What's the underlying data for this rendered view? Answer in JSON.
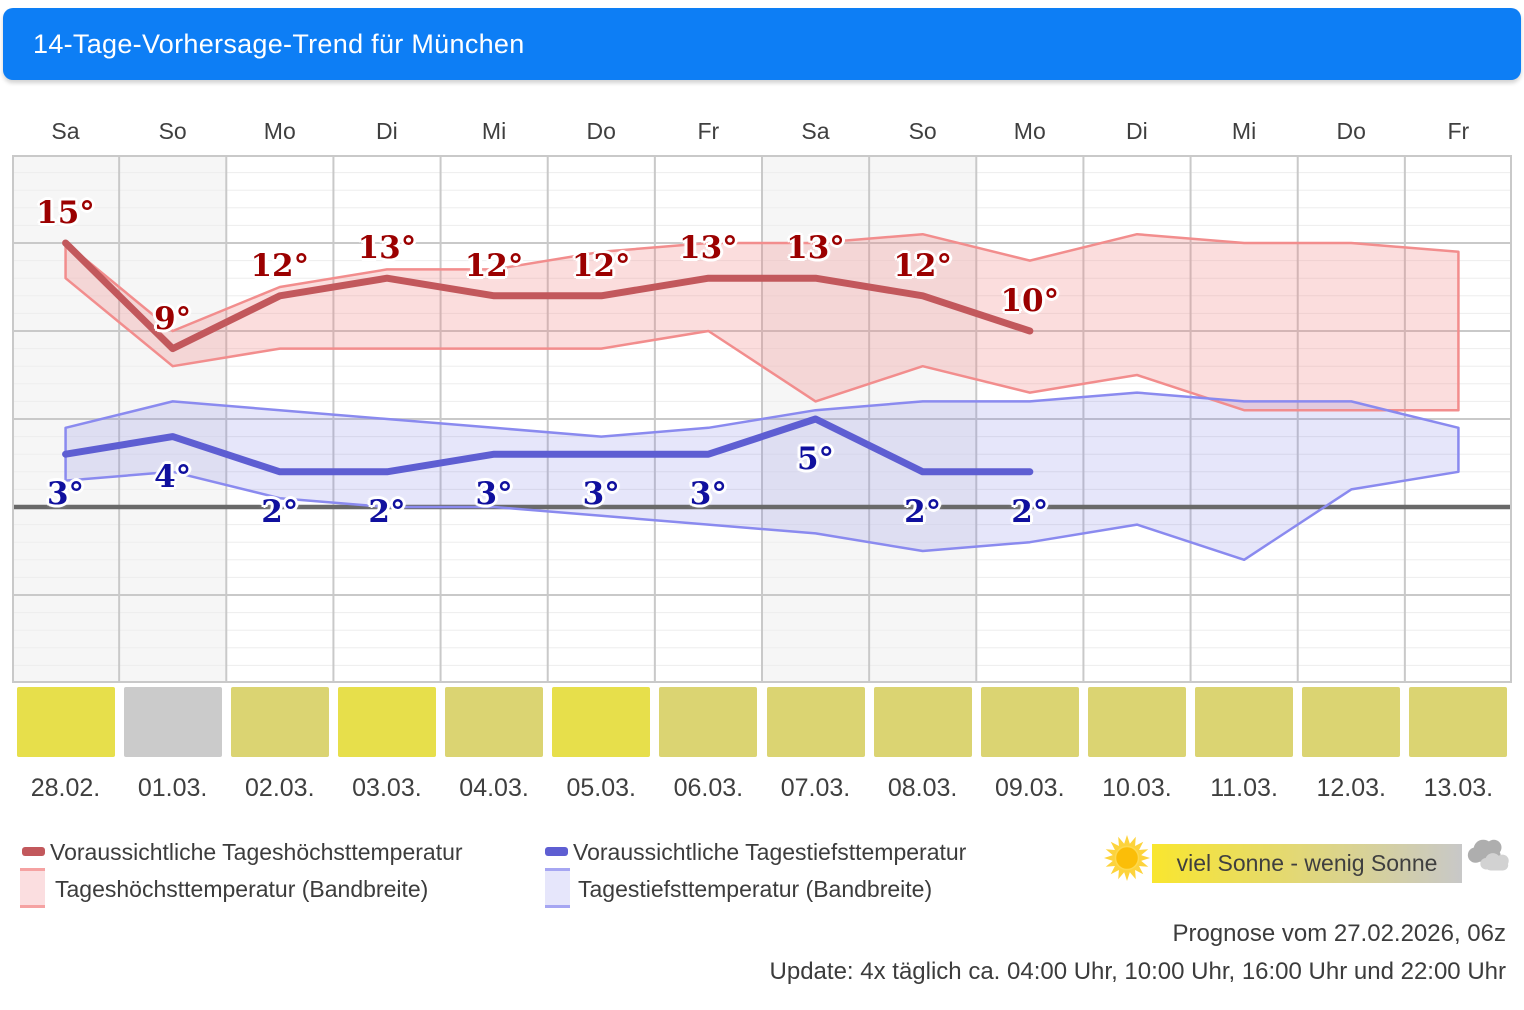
{
  "header": {
    "title": "14-Tage-Vorhersage-Trend für München",
    "bg_color": "#0d7ef5"
  },
  "days": [
    {
      "name": "Sa",
      "date": "28.02.",
      "sun_color": "#e7df4b"
    },
    {
      "name": "So",
      "date": "01.03.",
      "sun_color": "#cbcbcb"
    },
    {
      "name": "Mo",
      "date": "02.03.",
      "sun_color": "#dbd472"
    },
    {
      "name": "Di",
      "date": "03.03.",
      "sun_color": "#e7df4b"
    },
    {
      "name": "Mi",
      "date": "04.03.",
      "sun_color": "#dbd472"
    },
    {
      "name": "Do",
      "date": "05.03.",
      "sun_color": "#e7df4b"
    },
    {
      "name": "Fr",
      "date": "06.03.",
      "sun_color": "#dbd472"
    },
    {
      "name": "Sa",
      "date": "07.03.",
      "sun_color": "#dbd472"
    },
    {
      "name": "So",
      "date": "08.03.",
      "sun_color": "#dbd472"
    },
    {
      "name": "Mo",
      "date": "09.03.",
      "sun_color": "#dbd472"
    },
    {
      "name": "Di",
      "date": "10.03.",
      "sun_color": "#dbd472"
    },
    {
      "name": "Mi",
      "date": "11.03.",
      "sun_color": "#dbd472"
    },
    {
      "name": "Do",
      "date": "12.03.",
      "sun_color": "#dbd472"
    },
    {
      "name": "Fr",
      "date": "13.03.",
      "sun_color": "#dbd472"
    }
  ],
  "chart_data": {
    "type": "area",
    "title": "14-Tage-Vorhersage-Trend für München",
    "categories": [
      "Sa 28.02.",
      "So 01.03.",
      "Mo 02.03.",
      "Di 03.03.",
      "Mi 04.03.",
      "Do 05.03.",
      "Fr 06.03.",
      "Sa 07.03.",
      "So 08.03.",
      "Mo 09.03.",
      "Di 10.03.",
      "Mi 11.03.",
      "Do 12.03.",
      "Fr 13.03."
    ],
    "ylim": [
      -10,
      20
    ],
    "grid_minor_step": 1,
    "grid_major_step": 5,
    "zero_line": 0,
    "weekend_columns": [
      0,
      1,
      7,
      8
    ],
    "series": [
      {
        "name": "Voraussichtliche Tageshöchsttemperatur",
        "type": "line",
        "values": [
          15,
          9,
          12,
          13,
          12,
          12,
          13,
          13,
          12,
          10
        ],
        "labels": [
          "15°",
          "9°",
          "12°",
          "13°",
          "12°",
          "12°",
          "13°",
          "13°",
          "12°",
          "10°"
        ]
      },
      {
        "name": "Tageshöchsttemperatur (Bandbreite)",
        "type": "band",
        "hi": [
          15,
          10,
          12.5,
          13.5,
          13.5,
          14.5,
          15,
          15,
          15.5,
          14,
          15.5,
          15,
          15,
          14.5
        ],
        "lo": [
          13,
          8,
          9,
          9,
          9,
          9,
          10,
          6,
          8,
          6.5,
          7.5,
          5.5,
          5.5,
          5.5
        ]
      },
      {
        "name": "Voraussichtliche Tagestiefsttemperatur",
        "type": "line",
        "values": [
          3,
          4,
          2,
          2,
          3,
          3,
          3,
          5,
          2,
          2
        ],
        "labels": [
          "3°",
          "4°",
          "2°",
          "2°",
          "3°",
          "3°",
          "3°",
          "5°",
          "2°",
          "2°"
        ]
      },
      {
        "name": "Tagestiefsttemperatur (Bandbreite)",
        "type": "band",
        "hi": [
          4.5,
          6,
          5.5,
          5,
          4.5,
          4,
          4.5,
          5.5,
          6,
          6,
          6.5,
          6,
          6,
          4.5
        ],
        "lo": [
          1.5,
          2,
          0.5,
          0,
          0,
          -0.5,
          -1,
          -1.5,
          -2.5,
          -2,
          -1,
          -3,
          1,
          2
        ]
      }
    ],
    "colors": {
      "grid_minor": "#ededed",
      "grid_major": "#c9c9c9",
      "zero_line": "#696969",
      "weekend_bg": "#f6f6f6",
      "high_line": "#c2585c",
      "high_band_fill": "rgba(240,130,130,0.27)",
      "high_band_edge": "#f28d8d",
      "high_label": "#9b0000",
      "low_line": "#5e5ed2",
      "low_band_fill": "rgba(130,130,230,0.2)",
      "low_band_edge": "#8a8aef",
      "low_label": "#10109e"
    }
  },
  "legend": {
    "items": [
      {
        "label": "Voraussichtliche Tageshöchsttemperatur",
        "swatch": "dash",
        "color": "#c2585c"
      },
      {
        "label": "Tageshöchsttemperatur (Bandbreite)",
        "swatch": "band",
        "fill": "#fbdee0",
        "edge": "#f5a2a2"
      },
      {
        "label": "Voraussichtliche Tagestiefsttemperatur",
        "swatch": "dash",
        "color": "#5e5ed2"
      },
      {
        "label": "Tagestiefsttemperatur (Bandbreite)",
        "swatch": "band",
        "fill": "#e6e6fb",
        "edge": "#a6a6f2"
      }
    ],
    "sun_scale_label": "viel Sonne - wenig Sonne",
    "sun_scale_colors": {
      "left": "#f9e62e",
      "right": "#c8c8c8"
    }
  },
  "footer": {
    "prognose": "Prognose vom 27.02.2026, 06z",
    "update": "Update: 4x täglich ca. 04:00 Uhr, 10:00 Uhr, 16:00 Uhr und 22:00 Uhr"
  }
}
